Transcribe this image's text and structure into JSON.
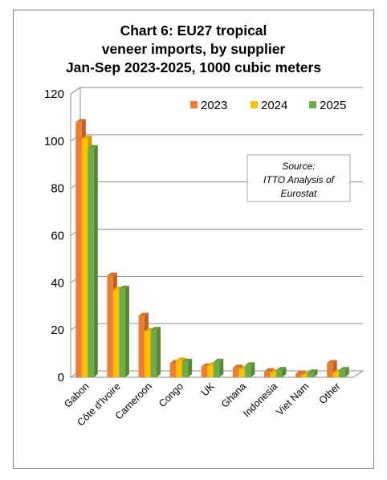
{
  "chart_data": {
    "type": "bar",
    "title_lines": [
      "Chart 6: EU27 tropical",
      "veneer imports, by supplier",
      "Jan-Sep 2023-2025, 1000 cubic meters"
    ],
    "categories": [
      "Gabon",
      "Côte d'Ivoire",
      "Cameroon",
      "Congo",
      "UK",
      "Ghana",
      "Indonesia",
      "Viet Nam",
      "Other"
    ],
    "series": [
      {
        "name": "2023",
        "color": "#ED7D31",
        "values": [
          108,
          43,
          26,
          6,
          4.5,
          4,
          2.5,
          1.5,
          6
        ]
      },
      {
        "name": "2024",
        "color": "#FFC000",
        "values": [
          101,
          37,
          19.5,
          7,
          5,
          3.5,
          2,
          1,
          2
        ]
      },
      {
        "name": "2025",
        "color": "#70AD47",
        "values": [
          97,
          37.5,
          20,
          6.5,
          6.5,
          5,
          3,
          2,
          3
        ]
      }
    ],
    "ylim": [
      0,
      120
    ],
    "yticks": [
      0,
      20,
      40,
      60,
      80,
      100,
      120
    ],
    "grid": true,
    "legend_position": "top-right",
    "annotation_lines": [
      "Source:",
      "ITTO Analysis of",
      "Eurostat"
    ]
  }
}
